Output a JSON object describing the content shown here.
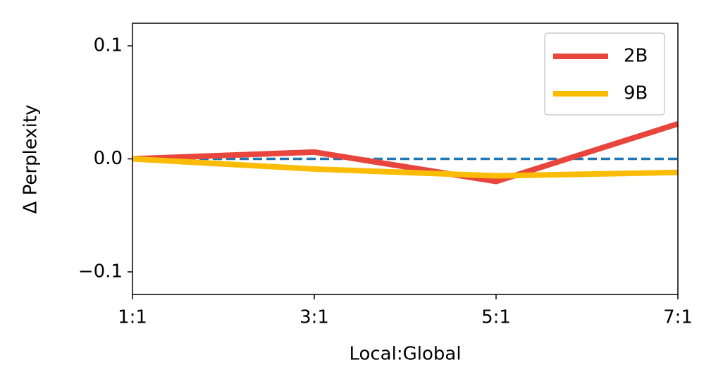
{
  "chart_data": {
    "type": "line",
    "xlabel": "Local:Global",
    "ylabel": "Δ Perplexity",
    "categories": [
      "1:1",
      "3:1",
      "5:1",
      "7:1"
    ],
    "series": [
      {
        "name": "2B",
        "color": "#e8453c",
        "values": [
          0,
          0.006,
          -0.02,
          0.031
        ]
      },
      {
        "name": "9B",
        "color": "#fbbc05",
        "values": [
          0,
          -0.009,
          -0.015,
          -0.012
        ]
      }
    ],
    "ylim": [
      -0.12,
      0.12
    ],
    "yticks": [
      {
        "value": -0.1,
        "label": "−0.1"
      },
      {
        "value": 0,
        "label": "0.0"
      },
      0.1
    ],
    "reference_line": {
      "value": 0,
      "color": "#1f77b4",
      "style": "dashed"
    },
    "grid": false,
    "legend": "upper right"
  }
}
